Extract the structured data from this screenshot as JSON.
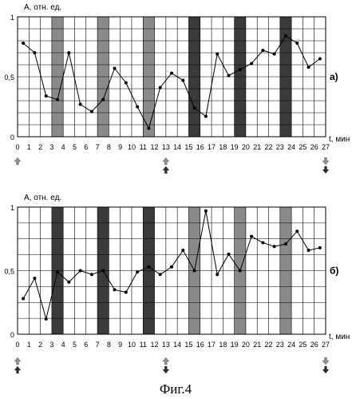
{
  "figure_caption": "Фиг.4",
  "colors": {
    "line": "#000000",
    "grid": "#000000",
    "dark_band": "#3a3a3a",
    "light_band": "#8a8a8a",
    "arrow_light": "#8f8f8f",
    "arrow_dark": "#2a2a2a"
  },
  "chart_data": [
    {
      "type": "line",
      "panel_label": "а)",
      "ylabel": "A, отн. ед.",
      "xlabel": "t, мин",
      "xlim": [
        0,
        27
      ],
      "ylim": [
        0,
        1
      ],
      "x_ticks": [
        0,
        1,
        2,
        3,
        4,
        5,
        6,
        7,
        8,
        9,
        10,
        11,
        12,
        13,
        14,
        15,
        16,
        17,
        18,
        19,
        20,
        21,
        22,
        23,
        24,
        25,
        26,
        27
      ],
      "y_ticks": [
        "0",
        "0,5",
        "1"
      ],
      "y_tick_values": [
        0,
        0.5,
        1
      ],
      "grid": true,
      "x": [
        0.5,
        1.5,
        2.5,
        3.5,
        4.5,
        5.5,
        6.5,
        7.5,
        8.5,
        9.5,
        10.5,
        11.5,
        12.5,
        13.5,
        14.5,
        15.5,
        16.5,
        17.5,
        18.5,
        19.5,
        20.5,
        21.5,
        22.5,
        23.5,
        24.5,
        25.5,
        26.5
      ],
      "values": [
        0.78,
        0.7,
        0.34,
        0.31,
        0.7,
        0.27,
        0.21,
        0.31,
        0.57,
        0.45,
        0.25,
        0.07,
        0.41,
        0.53,
        0.47,
        0.24,
        0.17,
        0.69,
        0.51,
        0.56,
        0.61,
        0.72,
        0.69,
        0.84,
        0.78,
        0.58,
        0.65
      ],
      "bands": [
        {
          "start": 3,
          "end": 4,
          "shade": "light"
        },
        {
          "start": 7,
          "end": 8,
          "shade": "light"
        },
        {
          "start": 11,
          "end": 12,
          "shade": "light"
        },
        {
          "start": 15,
          "end": 16,
          "shade": "dark"
        },
        {
          "start": 19,
          "end": 20,
          "shade": "dark"
        },
        {
          "start": 23,
          "end": 24,
          "shade": "dark"
        }
      ],
      "markers": [
        {
          "x": 0,
          "arrows": [
            "up-light"
          ]
        },
        {
          "x": 13,
          "arrows": [
            "up-light",
            "up-dark"
          ]
        },
        {
          "x": 27,
          "arrows": [
            "down-light",
            "down-dark"
          ]
        }
      ]
    },
    {
      "type": "line",
      "panel_label": "б)",
      "ylabel": "A, отн. ед.",
      "xlabel": "t, мин",
      "xlim": [
        0,
        27
      ],
      "ylim": [
        0,
        1
      ],
      "x_ticks": [
        0,
        1,
        2,
        3,
        4,
        5,
        6,
        7,
        8,
        9,
        10,
        11,
        12,
        13,
        14,
        15,
        16,
        17,
        18,
        19,
        20,
        21,
        22,
        23,
        24,
        25,
        26,
        27
      ],
      "y_ticks": [
        "0",
        "0,5",
        "1"
      ],
      "y_tick_values": [
        0,
        0.5,
        1
      ],
      "grid": true,
      "x": [
        0.5,
        1.5,
        2.5,
        3.5,
        4.5,
        5.5,
        6.5,
        7.5,
        8.5,
        9.5,
        10.5,
        11.5,
        12.5,
        13.5,
        14.5,
        15.5,
        16.5,
        17.5,
        18.5,
        19.5,
        20.5,
        21.5,
        22.5,
        23.5,
        24.5,
        25.5,
        26.5
      ],
      "values": [
        0.28,
        0.44,
        0.12,
        0.49,
        0.41,
        0.5,
        0.47,
        0.5,
        0.35,
        0.33,
        0.49,
        0.53,
        0.47,
        0.53,
        0.66,
        0.5,
        0.97,
        0.47,
        0.63,
        0.5,
        0.77,
        0.72,
        0.69,
        0.71,
        0.81,
        0.66,
        0.68
      ],
      "bands": [
        {
          "start": 3,
          "end": 4,
          "shade": "dark"
        },
        {
          "start": 7,
          "end": 8,
          "shade": "dark"
        },
        {
          "start": 11,
          "end": 12,
          "shade": "dark"
        },
        {
          "start": 15,
          "end": 16,
          "shade": "light"
        },
        {
          "start": 19,
          "end": 20,
          "shade": "light"
        },
        {
          "start": 23,
          "end": 24,
          "shade": "light"
        }
      ],
      "markers": [
        {
          "x": 0,
          "arrows": [
            "up-light",
            "up-dark"
          ]
        },
        {
          "x": 13,
          "arrows": [
            "up-light",
            "down-dark"
          ]
        },
        {
          "x": 27,
          "arrows": [
            "down-light",
            "down-dark"
          ]
        }
      ]
    }
  ]
}
